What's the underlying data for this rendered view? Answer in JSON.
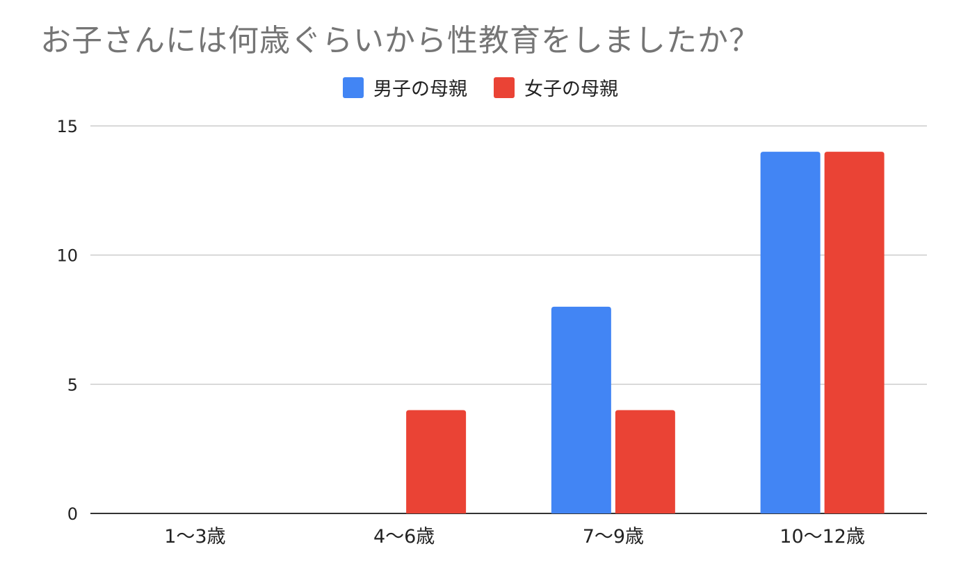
{
  "chart_data": {
    "type": "bar",
    "title": "お子さんには何歳ぐらいから性教育をしましたか？",
    "categories": [
      "1～3歳",
      "4～6歳",
      "7～9歳",
      "10～12歳"
    ],
    "series": [
      {
        "name": "男子の母親",
        "color": "#4285F4",
        "values": [
          0,
          0,
          8,
          14
        ]
      },
      {
        "name": "女子の母親",
        "color": "#EA4335",
        "values": [
          0,
          4,
          4,
          14
        ]
      }
    ],
    "xlabel": "",
    "ylabel": "",
    "ylim": [
      0,
      15
    ],
    "yticks": [
      "0",
      "5",
      "10",
      "15"
    ],
    "grid": true,
    "legend_position": "top-center"
  }
}
